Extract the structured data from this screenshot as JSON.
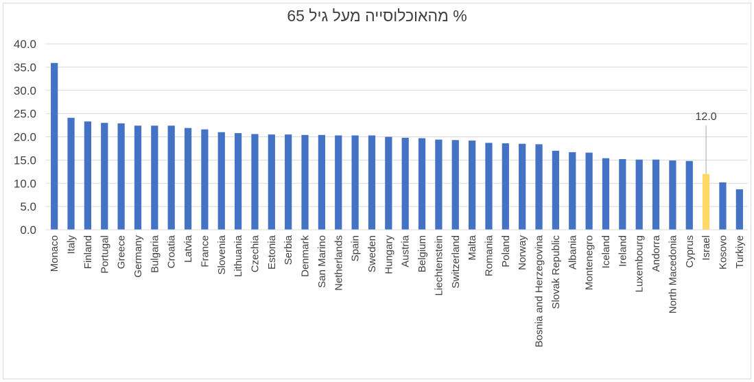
{
  "chart_data": {
    "type": "bar",
    "title": "% מהאוכלוסייה מעל גיל 65",
    "categories": [
      "Monaco",
      "Italy",
      "Finland",
      "Portugal",
      "Greece",
      "Germany",
      "Bulgaria",
      "Croatia",
      "Latvia",
      "France",
      "Slovenia",
      "Lithuania",
      "Czechia",
      "Estonia",
      "Serbia",
      "Denmark",
      "San Marino",
      "Netherlands",
      "Spain",
      "Sweden",
      "Hungary",
      "Austria",
      "Belgium",
      "Liechtenstein",
      "Switzerland",
      "Malta",
      "Romania",
      "Poland",
      "Norway",
      "Bosnia and Herzegovina",
      "Slovak Republic",
      "Albania",
      "Montenegro",
      "Iceland",
      "Ireland",
      "Luxembourg",
      "Andorra",
      "North Macedonia",
      "Cyprus",
      "Israel",
      "Kosovo",
      "Turkiye"
    ],
    "values": [
      35.9,
      24.1,
      23.3,
      23.0,
      22.9,
      22.4,
      22.4,
      22.4,
      21.9,
      21.6,
      21.0,
      20.8,
      20.6,
      20.5,
      20.5,
      20.4,
      20.4,
      20.3,
      20.3,
      20.3,
      20.0,
      19.8,
      19.7,
      19.4,
      19.3,
      19.2,
      18.7,
      18.6,
      18.5,
      18.4,
      17.0,
      16.7,
      16.6,
      15.4,
      15.2,
      15.1,
      15.1,
      14.9,
      14.8,
      12.0,
      10.2,
      8.7
    ],
    "highlight": {
      "category": "Israel",
      "label": "12.0",
      "color": "#ffd966"
    },
    "bar_color": "#4472c4",
    "ylim": [
      0,
      40
    ],
    "yticks": [
      "0.0",
      "5.0",
      "10.0",
      "15.0",
      "20.0",
      "25.0",
      "30.0",
      "35.0",
      "40.0"
    ],
    "grid": true,
    "xlabel": "",
    "ylabel": ""
  }
}
